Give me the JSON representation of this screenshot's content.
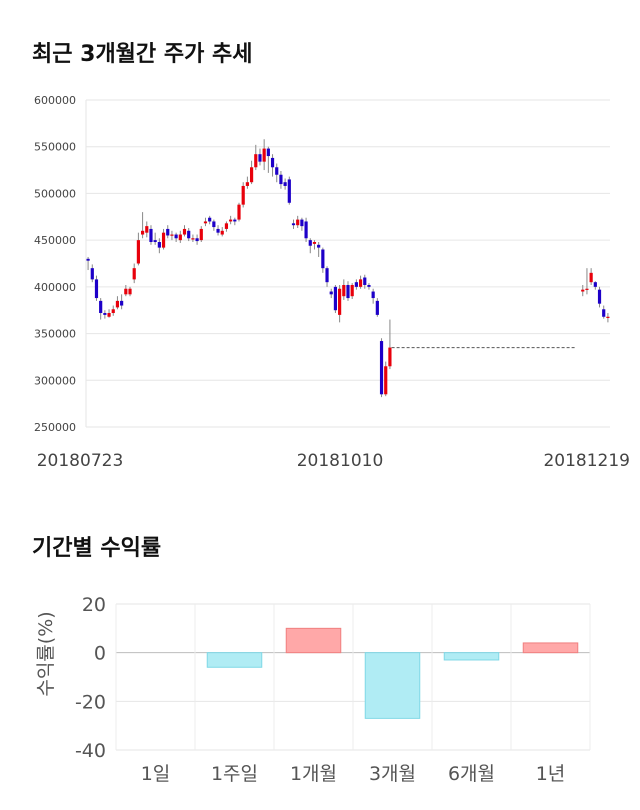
{
  "section1": {
    "title": "최근 3개월간 주가 추세"
  },
  "section2": {
    "title": "기간별 수익률"
  },
  "chart_data": [
    {
      "type": "candlestick",
      "yticks": [
        600000,
        550000,
        500000,
        450000,
        400000,
        350000,
        300000,
        250000
      ],
      "ylim": [
        250000,
        600000
      ],
      "xticks": [
        "20180723",
        "20181010",
        "20181219"
      ],
      "grid": true,
      "colors": {
        "up": "#e8000b",
        "down": "#1d00c8",
        "reference_line": "#555555"
      },
      "reference_line": {
        "value": 335000,
        "style": "dashed"
      },
      "candles": [
        [
          430000,
          428000,
          418000,
          432000
        ],
        [
          420000,
          408000,
          405000,
          424000
        ],
        [
          408000,
          388000,
          385000,
          412000
        ],
        [
          385000,
          372000,
          365000,
          388000
        ],
        [
          372000,
          370000,
          366000,
          375000
        ],
        [
          368000,
          372000,
          367000,
          376000
        ],
        [
          372000,
          376000,
          369000,
          380000
        ],
        [
          378000,
          385000,
          376000,
          390000
        ],
        [
          385000,
          380000,
          376000,
          392000
        ],
        [
          392000,
          398000,
          390000,
          402000
        ],
        [
          392000,
          398000,
          390000,
          400000
        ],
        [
          408000,
          420000,
          404000,
          425000
        ],
        [
          425000,
          450000,
          423000,
          458000
        ],
        [
          456000,
          460000,
          452000,
          480000
        ],
        [
          458000,
          465000,
          453000,
          470000
        ],
        [
          462000,
          448000,
          445000,
          466000
        ],
        [
          450000,
          448000,
          445000,
          458000
        ],
        [
          448000,
          442000,
          436000,
          452000
        ],
        [
          442000,
          458000,
          440000,
          462000
        ],
        [
          462000,
          455000,
          452000,
          466000
        ],
        [
          455000,
          456000,
          450000,
          460000
        ],
        [
          456000,
          452000,
          448000,
          458000
        ],
        [
          450000,
          456000,
          447000,
          460000
        ],
        [
          456000,
          462000,
          454000,
          466000
        ],
        [
          460000,
          452000,
          449000,
          463000
        ],
        [
          452000,
          452000,
          448000,
          456000
        ],
        [
          452000,
          449000,
          445000,
          456000
        ],
        [
          450000,
          462000,
          448000,
          465000
        ],
        [
          468000,
          470000,
          465000,
          474000
        ],
        [
          474000,
          470000,
          467000,
          476000
        ],
        [
          470000,
          464000,
          460000,
          472000
        ],
        [
          462000,
          458000,
          455000,
          466000
        ],
        [
          456000,
          460000,
          454000,
          464000
        ],
        [
          462000,
          468000,
          459000,
          470000
        ],
        [
          470000,
          472000,
          467000,
          476000
        ],
        [
          472000,
          470000,
          466000,
          474000
        ],
        [
          472000,
          488000,
          470000,
          490000
        ],
        [
          488000,
          508000,
          485000,
          512000
        ],
        [
          508000,
          512000,
          505000,
          518000
        ],
        [
          512000,
          528000,
          510000,
          535000
        ],
        [
          528000,
          542000,
          525000,
          552000
        ],
        [
          542000,
          534000,
          530000,
          548000
        ],
        [
          534000,
          548000,
          525000,
          558000
        ],
        [
          548000,
          540000,
          522000,
          550000
        ],
        [
          538000,
          528000,
          518000,
          542000
        ],
        [
          528000,
          520000,
          512000,
          532000
        ],
        [
          520000,
          510000,
          505000,
          524000
        ],
        [
          512000,
          508000,
          504000,
          516000
        ],
        [
          515000,
          490000,
          488000,
          518000
        ],
        [
          468000,
          466000,
          462000,
          472000
        ],
        [
          466000,
          472000,
          463000,
          476000
        ],
        [
          472000,
          465000,
          460000,
          474000
        ],
        [
          470000,
          452000,
          448000,
          474000
        ],
        [
          450000,
          444000,
          436000,
          452000
        ],
        [
          446000,
          448000,
          440000,
          450000
        ],
        [
          445000,
          442000,
          432000,
          448000
        ],
        [
          440000,
          420000,
          415000,
          442000
        ],
        [
          420000,
          405000,
          400000,
          422000
        ],
        [
          395000,
          392000,
          388000,
          398000
        ],
        [
          400000,
          375000,
          372000,
          402000
        ],
        [
          370000,
          398000,
          362000,
          402000
        ],
        [
          390000,
          402000,
          386000,
          408000
        ],
        [
          402000,
          388000,
          385000,
          406000
        ],
        [
          390000,
          402000,
          387000,
          404000
        ],
        [
          405000,
          400000,
          397000,
          408000
        ],
        [
          400000,
          408000,
          398000,
          412000
        ],
        [
          410000,
          402000,
          398000,
          413000
        ],
        [
          402000,
          400000,
          397000,
          404000
        ],
        [
          395000,
          388000,
          382000,
          398000
        ],
        [
          385000,
          370000,
          368000,
          388000
        ],
        [
          342000,
          285000,
          282000,
          345000
        ],
        [
          285000,
          315000,
          283000,
          320000
        ],
        [
          315000,
          335000,
          312000,
          365000
        ],
        null,
        null,
        null,
        null,
        null,
        null,
        null,
        null,
        null,
        null,
        null,
        null,
        null,
        null,
        null,
        null,
        null,
        null,
        null,
        null,
        null,
        null,
        null,
        null,
        null,
        null,
        null,
        null,
        null,
        null,
        null,
        null,
        null,
        null,
        null,
        null,
        null,
        null,
        null,
        null,
        null,
        null,
        null,
        null,
        null,
        [
          395000,
          397000,
          390000,
          402000
        ],
        [
          397000,
          398000,
          392000,
          420000
        ],
        [
          405000,
          415000,
          402000,
          420000
        ],
        [
          405000,
          400000,
          397000,
          406000
        ],
        [
          397000,
          382000,
          378000,
          400000
        ],
        [
          376000,
          368000,
          366000,
          380000
        ],
        [
          368000,
          368000,
          362000,
          372000
        ]
      ]
    },
    {
      "type": "bar",
      "categories": [
        "1일",
        "1주일",
        "1개월",
        "3개월",
        "6개월",
        "1년"
      ],
      "values": [
        0,
        -6,
        10,
        -27,
        -3,
        4
      ],
      "ylabel": "수익률(%)",
      "yticks": [
        "20",
        "0",
        "-20",
        "-40"
      ],
      "ylim": [
        -40,
        20
      ],
      "grid": true,
      "colors": {
        "positive_fill": "#ffa8a8",
        "positive_stroke": "#f08080",
        "negative_fill": "#b0ecf4",
        "negative_stroke": "#7fd8e6"
      }
    }
  ]
}
